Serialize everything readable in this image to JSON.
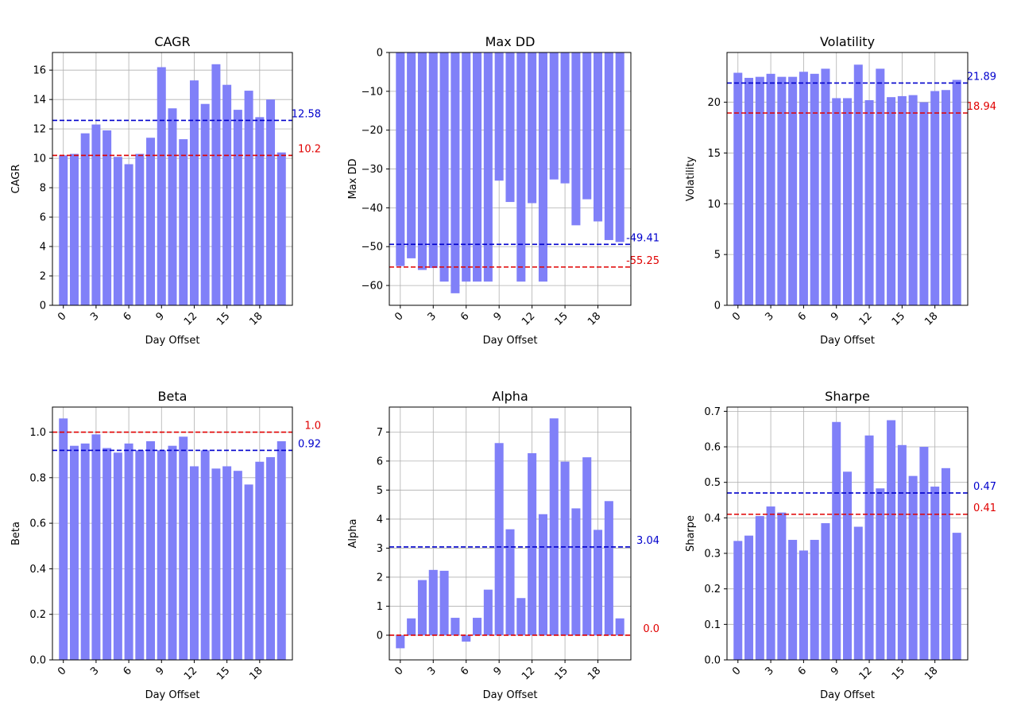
{
  "chart_data": [
    {
      "type": "bar",
      "title": "CAGR",
      "xlabel": "Day Offset",
      "ylabel": "CAGR",
      "x": [
        0,
        1,
        2,
        3,
        4,
        5,
        6,
        7,
        8,
        9,
        10,
        11,
        12,
        13,
        14,
        15,
        16,
        17,
        18,
        19,
        20
      ],
      "values": [
        10.2,
        10.3,
        11.7,
        12.3,
        11.9,
        10.1,
        9.6,
        10.3,
        11.4,
        16.2,
        13.4,
        11.3,
        15.3,
        13.7,
        16.4,
        15.0,
        13.3,
        14.6,
        12.8,
        14.0,
        10.4
      ],
      "ylim": [
        0,
        17.2
      ],
      "yticks": [
        0,
        2,
        4,
        6,
        8,
        10,
        12,
        14,
        16
      ],
      "ytick_labels": [
        "0",
        "2",
        "4",
        "6",
        "8",
        "10",
        "12",
        "14",
        "16"
      ],
      "xticks": [
        0,
        3,
        6,
        9,
        12,
        15,
        18
      ],
      "xtick_labels": [
        "0",
        "3",
        "6",
        "9",
        "12",
        "15",
        "18"
      ],
      "ref_lines": [
        {
          "value": 12.58,
          "label": "12.58",
          "color": "#0000cc"
        },
        {
          "value": 10.2,
          "label": "10.2",
          "color": "#e00000"
        }
      ]
    },
    {
      "type": "bar",
      "title": "Max DD",
      "xlabel": "Day Offset",
      "ylabel": "Max DD",
      "x": [
        0,
        1,
        2,
        3,
        4,
        5,
        6,
        7,
        8,
        9,
        10,
        11,
        12,
        13,
        14,
        15,
        16,
        17,
        18,
        19,
        20
      ],
      "values": [
        -55,
        -53,
        -56,
        -55.5,
        -59,
        -62,
        -59,
        -59,
        -59,
        -33,
        -38.5,
        -59,
        -38.8,
        -59,
        -32.7,
        -33.7,
        -44.5,
        -37.8,
        -43.5,
        -48.3,
        -48.8
      ],
      "ylim": [
        -65.1,
        0
      ],
      "yticks": [
        0,
        -10,
        -20,
        -30,
        -40,
        -50,
        -60
      ],
      "ytick_labels": [
        "0",
        "−10",
        "−20",
        "−30",
        "−40",
        "−50",
        "−60"
      ],
      "xticks": [
        0,
        3,
        6,
        9,
        12,
        15,
        18
      ],
      "xtick_labels": [
        "0",
        "3",
        "6",
        "9",
        "12",
        "15",
        "18"
      ],
      "ref_lines": [
        {
          "value": -49.41,
          "label": "-49.41",
          "color": "#0000cc"
        },
        {
          "value": -55.25,
          "label": "-55.25",
          "color": "#e00000"
        }
      ]
    },
    {
      "type": "bar",
      "title": "Volatility",
      "xlabel": "Day Offset",
      "ylabel": "Volatility",
      "x": [
        0,
        1,
        2,
        3,
        4,
        5,
        6,
        7,
        8,
        9,
        10,
        11,
        12,
        13,
        14,
        15,
        16,
        17,
        18,
        19,
        20
      ],
      "values": [
        22.9,
        22.4,
        22.5,
        22.8,
        22.5,
        22.5,
        23.0,
        22.8,
        23.3,
        20.4,
        20.4,
        23.7,
        20.2,
        23.3,
        20.5,
        20.6,
        20.7,
        20.0,
        21.1,
        21.2,
        22.2
      ],
      "ylim": [
        0,
        24.9
      ],
      "yticks": [
        0,
        5,
        10,
        15,
        20
      ],
      "ytick_labels": [
        "0",
        "5",
        "10",
        "15",
        "20"
      ],
      "xticks": [
        0,
        3,
        6,
        9,
        12,
        15,
        18
      ],
      "xtick_labels": [
        "0",
        "3",
        "6",
        "9",
        "12",
        "15",
        "18"
      ],
      "ref_lines": [
        {
          "value": 21.89,
          "label": "21.89",
          "color": "#0000cc"
        },
        {
          "value": 18.94,
          "label": "18.94",
          "color": "#e00000"
        }
      ]
    },
    {
      "type": "bar",
      "title": "Beta",
      "xlabel": "Day Offset",
      "ylabel": "Beta",
      "x": [
        0,
        1,
        2,
        3,
        4,
        5,
        6,
        7,
        8,
        9,
        10,
        11,
        12,
        13,
        14,
        15,
        16,
        17,
        18,
        19,
        20
      ],
      "values": [
        1.06,
        0.94,
        0.95,
        0.99,
        0.93,
        0.91,
        0.95,
        0.92,
        0.96,
        0.92,
        0.94,
        0.98,
        0.85,
        0.92,
        0.84,
        0.85,
        0.83,
        0.77,
        0.87,
        0.89,
        0.96
      ],
      "ylim": [
        0,
        1.11
      ],
      "yticks": [
        0,
        0.2,
        0.4,
        0.6,
        0.8,
        1.0
      ],
      "ytick_labels": [
        "0.0",
        "0.2",
        "0.4",
        "0.6",
        "0.8",
        "1.0"
      ],
      "xticks": [
        0,
        3,
        6,
        9,
        12,
        15,
        18
      ],
      "xtick_labels": [
        "0",
        "3",
        "6",
        "9",
        "12",
        "15",
        "18"
      ],
      "ref_lines": [
        {
          "value": 1.0,
          "label": "1.0",
          "color": "#e00000"
        },
        {
          "value": 0.92,
          "label": "0.92",
          "color": "#0000cc"
        }
      ]
    },
    {
      "type": "bar",
      "title": "Alpha",
      "xlabel": "Day Offset",
      "ylabel": "Alpha",
      "x": [
        0,
        1,
        2,
        3,
        4,
        5,
        6,
        7,
        8,
        9,
        10,
        11,
        12,
        13,
        14,
        15,
        16,
        17,
        18,
        19,
        20
      ],
      "values": [
        -0.45,
        0.58,
        1.9,
        2.25,
        2.22,
        0.6,
        -0.22,
        0.6,
        1.57,
        6.62,
        3.65,
        1.28,
        6.27,
        4.17,
        7.47,
        5.98,
        4.37,
        6.13,
        3.63,
        4.62,
        0.58
      ],
      "ylim": [
        -0.85,
        7.86
      ],
      "yticks": [
        0,
        1,
        2,
        3,
        4,
        5,
        6,
        7
      ],
      "ytick_labels": [
        "0",
        "1",
        "2",
        "3",
        "4",
        "5",
        "6",
        "7"
      ],
      "xticks": [
        0,
        3,
        6,
        9,
        12,
        15,
        18
      ],
      "xtick_labels": [
        "0",
        "3",
        "6",
        "9",
        "12",
        "15",
        "18"
      ],
      "ref_lines": [
        {
          "value": 3.04,
          "label": "3.04",
          "color": "#0000cc"
        },
        {
          "value": 0.0,
          "label": "0.0",
          "color": "#e00000"
        }
      ]
    },
    {
      "type": "bar",
      "title": "Sharpe",
      "xlabel": "Day Offset",
      "ylabel": "Sharpe",
      "x": [
        0,
        1,
        2,
        3,
        4,
        5,
        6,
        7,
        8,
        9,
        10,
        11,
        12,
        13,
        14,
        15,
        16,
        17,
        18,
        19,
        20
      ],
      "values": [
        0.335,
        0.35,
        0.405,
        0.432,
        0.415,
        0.338,
        0.308,
        0.338,
        0.385,
        0.67,
        0.53,
        0.375,
        0.632,
        0.483,
        0.675,
        0.605,
        0.518,
        0.6,
        0.488,
        0.54,
        0.358
      ],
      "ylim": [
        0,
        0.712
      ],
      "yticks": [
        0,
        0.1,
        0.2,
        0.3,
        0.4,
        0.5,
        0.6,
        0.7
      ],
      "ytick_labels": [
        "0.0",
        "0.1",
        "0.2",
        "0.3",
        "0.4",
        "0.5",
        "0.6",
        "0.7"
      ],
      "xticks": [
        0,
        3,
        6,
        9,
        12,
        15,
        18
      ],
      "xtick_labels": [
        "0",
        "3",
        "6",
        "9",
        "12",
        "15",
        "18"
      ],
      "ref_lines": [
        {
          "value": 0.47,
          "label": "0.47",
          "color": "#0000cc"
        },
        {
          "value": 0.41,
          "label": "0.41",
          "color": "#e00000"
        }
      ]
    }
  ]
}
